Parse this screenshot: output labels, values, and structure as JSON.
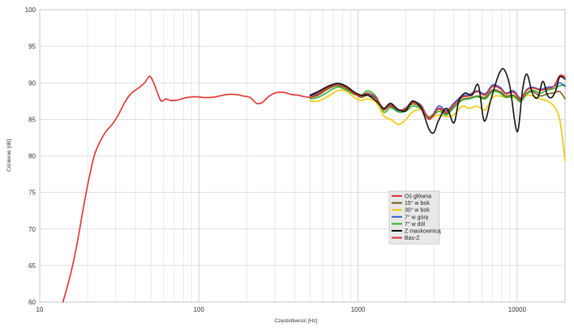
{
  "chart_data": {
    "type": "line",
    "xlabel": "Częstotliwość [Hz]",
    "ylabel": "Ciśnienie [dB]",
    "x_scale": "log",
    "xlim": [
      10,
      20000
    ],
    "ylim": [
      60,
      100
    ],
    "grid": true,
    "legend_placement": "bottom-center",
    "x_ticks": [
      "10",
      "100",
      "1000",
      "10000"
    ],
    "y_ticks": [
      "60",
      "65",
      "70",
      "75",
      "80",
      "85",
      "90",
      "95",
      "100"
    ],
    "series": [
      {
        "name": "Oś główna",
        "color": "#e03030",
        "x": [
          500,
          560,
          630,
          700,
          760,
          850,
          950,
          1050,
          1150,
          1300,
          1450,
          1600,
          1800,
          2000,
          2200,
          2500,
          2800,
          3200,
          3600,
          4000,
          4500,
          5000,
          5600,
          6300,
          7000,
          7800,
          8500,
          9500,
          10500,
          11500,
          12500,
          14000,
          15500,
          17000,
          18500,
          20000
        ],
        "y": [
          88,
          88.5,
          89.2,
          89.7,
          89.8,
          89.3,
          88.5,
          88.2,
          88.6,
          87.9,
          86.3,
          87.0,
          86.3,
          86.5,
          87.3,
          86.8,
          85.0,
          86.5,
          86.0,
          87.0,
          88.0,
          88.2,
          88.8,
          88.3,
          89.5,
          89.2,
          88.5,
          88.7,
          87.8,
          89.0,
          89.3,
          89.0,
          89.2,
          89.5,
          91.0,
          90.8
        ]
      },
      {
        "name": "15° w bok",
        "color": "#7a5a10",
        "x": [
          500,
          560,
          630,
          700,
          760,
          850,
          950,
          1050,
          1150,
          1300,
          1450,
          1600,
          1800,
          2000,
          2200,
          2500,
          2800,
          3200,
          3600,
          4000,
          4500,
          5000,
          5600,
          6300,
          7000,
          7800,
          8500,
          9500,
          10500,
          11500,
          12500,
          14000,
          15500,
          17000,
          18500,
          20000
        ],
        "y": [
          88,
          88.3,
          89.0,
          89.5,
          89.6,
          89.2,
          88.5,
          88.0,
          88.3,
          87.8,
          86.5,
          86.8,
          86.2,
          86.4,
          87.1,
          86.6,
          85.3,
          86.4,
          85.8,
          86.7,
          87.7,
          87.9,
          88.2,
          88.0,
          89.0,
          88.8,
          88.2,
          88.3,
          87.6,
          88.5,
          88.8,
          88.2,
          88.5,
          88.6,
          88.8,
          87.8
        ]
      },
      {
        "name": "30° w bok",
        "color": "#f2c800",
        "x": [
          500,
          560,
          630,
          700,
          760,
          850,
          950,
          1050,
          1150,
          1300,
          1450,
          1600,
          1800,
          2000,
          2200,
          2500,
          2800,
          3200,
          3600,
          4000,
          4500,
          5000,
          5600,
          6300,
          7000,
          7800,
          8500,
          9500,
          10500,
          11500,
          12500,
          14000,
          15500,
          17000,
          18500,
          20000
        ],
        "y": [
          87.5,
          87.5,
          88.0,
          88.6,
          89.0,
          88.8,
          88.0,
          87.6,
          87.8,
          87.3,
          85.5,
          85.0,
          84.3,
          85.0,
          86.0,
          86.3,
          85.2,
          85.6,
          85.4,
          85.6,
          86.8,
          86.5,
          86.8,
          86.3,
          88.0,
          88.2,
          88.0,
          88.0,
          87.6,
          88.3,
          88.2,
          87.8,
          87.5,
          86.8,
          85.0,
          79.3
        ]
      },
      {
        "name": "7° w górę",
        "color": "#3a5ad0",
        "x": [
          500,
          560,
          630,
          700,
          760,
          850,
          950,
          1050,
          1150,
          1300,
          1450,
          1600,
          1800,
          2000,
          2200,
          2500,
          2800,
          3200,
          3600,
          4000,
          4500,
          5000,
          5600,
          6300,
          7000,
          7800,
          8500,
          9500,
          10500,
          11500,
          12500,
          14000,
          15500,
          17000,
          18500,
          20000
        ],
        "y": [
          88.2,
          88.6,
          89.3,
          89.8,
          89.9,
          89.4,
          88.6,
          88.2,
          88.5,
          87.8,
          86.4,
          87.0,
          86.2,
          86.6,
          87.4,
          86.9,
          85.0,
          86.8,
          86.2,
          87.2,
          88.2,
          88.4,
          88.9,
          88.5,
          89.7,
          89.4,
          88.6,
          88.9,
          87.9,
          89.1,
          89.4,
          89.1,
          89.4,
          89.5,
          90.0,
          89.5
        ]
      },
      {
        "name": "7° w dół",
        "color": "#30b030",
        "x": [
          500,
          560,
          630,
          700,
          760,
          850,
          950,
          1050,
          1150,
          1300,
          1450,
          1600,
          1800,
          2000,
          2200,
          2500,
          2800,
          3200,
          3600,
          4000,
          4500,
          5000,
          5600,
          6300,
          7000,
          7800,
          8500,
          9500,
          10500,
          11500,
          12500,
          14000,
          15500,
          17000,
          18500,
          20000
        ],
        "y": [
          87.8,
          88.0,
          88.6,
          89.2,
          89.4,
          89.0,
          88.4,
          88.3,
          88.9,
          88.1,
          86.0,
          86.6,
          86.0,
          86.1,
          86.8,
          86.4,
          85.1,
          86.1,
          85.6,
          86.6,
          87.6,
          87.8,
          88.1,
          87.8,
          88.8,
          88.6,
          88.0,
          88.2,
          87.4,
          88.6,
          89.0,
          88.6,
          89.0,
          89.2,
          89.6,
          89.7
        ]
      },
      {
        "name": "Z maskownicą",
        "color": "#111111",
        "x": [
          500,
          560,
          630,
          700,
          760,
          850,
          950,
          1050,
          1150,
          1300,
          1450,
          1600,
          1800,
          2000,
          2200,
          2500,
          2800,
          3000,
          3200,
          3600,
          4000,
          4300,
          4700,
          5200,
          5700,
          6200,
          6800,
          7300,
          7800,
          8300,
          9000,
          10000,
          10800,
          11500,
          12500,
          13500,
          14500,
          15500,
          16500,
          17500,
          18500,
          20000
        ],
        "y": [
          88.3,
          88.8,
          89.4,
          89.8,
          89.9,
          89.5,
          88.7,
          88.3,
          88.3,
          87.5,
          86.5,
          87.2,
          86.3,
          86.2,
          87.5,
          86.5,
          83.6,
          83.2,
          84.8,
          86.5,
          84.5,
          87.5,
          88.6,
          88.3,
          89.7,
          84.8,
          87.5,
          89.8,
          91.5,
          91.8,
          89.5,
          83.3,
          89.0,
          91.2,
          88.5,
          88.0,
          90.2,
          88.3,
          88.0,
          89.0,
          90.8,
          90.5
        ]
      },
      {
        "name": "Bas-Z",
        "color": "#e03030",
        "x": [
          14,
          15.5,
          17,
          18.5,
          20,
          22,
          24,
          26,
          28.5,
          31,
          34,
          37,
          40,
          43,
          46,
          49,
          52,
          55,
          58,
          62,
          66,
          72,
          78,
          85,
          95,
          105,
          120,
          135,
          150,
          170,
          190,
          210,
          230,
          250,
          270,
          300,
          340,
          380,
          420,
          460,
          500
        ],
        "y": [
          60,
          63.5,
          67.5,
          72,
          76,
          80,
          82,
          83.3,
          84.3,
          85.5,
          87.2,
          88.4,
          89.0,
          89.5,
          90.1,
          90.9,
          90.0,
          88.6,
          87.5,
          87.8,
          87.6,
          87.6,
          87.8,
          88.0,
          88.1,
          88.0,
          88.0,
          88.2,
          88.4,
          88.4,
          88.2,
          88.0,
          87.2,
          87.3,
          88.0,
          88.6,
          88.7,
          88.4,
          88.3,
          88.1,
          88.0
        ]
      }
    ]
  }
}
